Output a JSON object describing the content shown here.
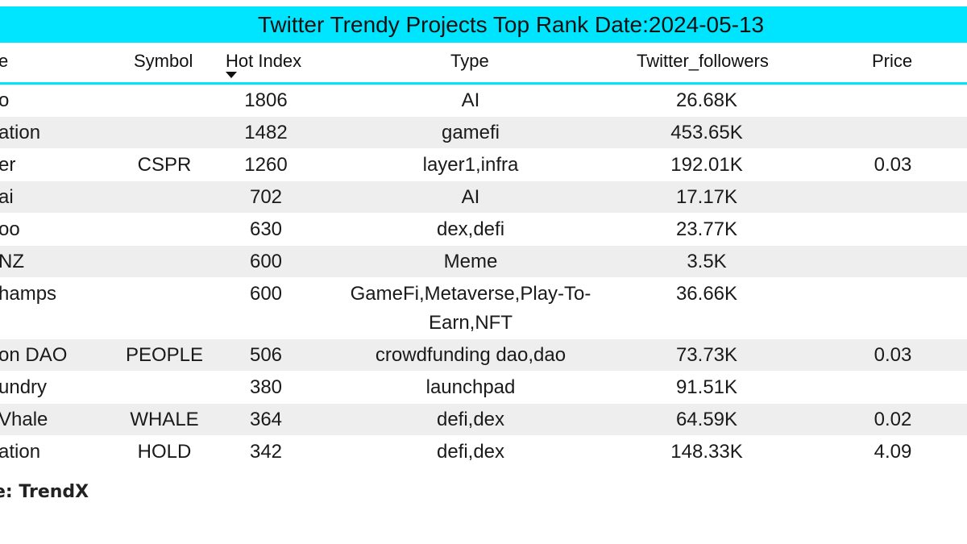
{
  "title": "Twitter Trendy Projects Top Rank Date:2024-05-13",
  "columns": {
    "name": "e",
    "symbol": "Symbol",
    "hot_index": "Hot Index",
    "type": "Type",
    "twitter_followers": "Twitter_followers",
    "price": "Price"
  },
  "sort": {
    "column": "hot_index",
    "direction": "descending",
    "icon": "sort-down-arrow-icon"
  },
  "rows": [
    {
      "name": "o",
      "symbol": "",
      "hot_index": "1806",
      "type": "AI",
      "twitter_followers": "26.68K",
      "price": ""
    },
    {
      "name": "ation",
      "symbol": "",
      "hot_index": "1482",
      "type": "gamefi",
      "twitter_followers": "453.65K",
      "price": ""
    },
    {
      "name": "er",
      "symbol": "CSPR",
      "hot_index": "1260",
      "type": "layer1,infra",
      "twitter_followers": "192.01K",
      "price": "0.03"
    },
    {
      "name": "ai",
      "symbol": "",
      "hot_index": "702",
      "type": "AI",
      "twitter_followers": "17.17K",
      "price": ""
    },
    {
      "name": "oo",
      "symbol": "",
      "hot_index": "630",
      "type": "dex,defi",
      "twitter_followers": "23.77K",
      "price": ""
    },
    {
      "name": "NZ",
      "symbol": "",
      "hot_index": "600",
      "type": "Meme",
      "twitter_followers": "3.5K",
      "price": ""
    },
    {
      "name": "hamps",
      "symbol": "",
      "hot_index": "600",
      "type": "GameFi,Metaverse,Play-To-Earn,NFT",
      "twitter_followers": "36.66K",
      "price": ""
    },
    {
      "name": "on DAO",
      "symbol": "PEOPLE",
      "hot_index": "506",
      "type": "crowdfunding dao,dao",
      "twitter_followers": "73.73K",
      "price": "0.03"
    },
    {
      "name": "undry",
      "symbol": "",
      "hot_index": "380",
      "type": "launchpad",
      "twitter_followers": "91.51K",
      "price": ""
    },
    {
      "name": "Vhale",
      "symbol": "WHALE",
      "hot_index": "364",
      "type": "defi,dex",
      "twitter_followers": "64.59K",
      "price": "0.02"
    },
    {
      "name": "ation",
      "symbol": "HOLD",
      "hot_index": "342",
      "type": "defi,dex",
      "twitter_followers": "148.33K",
      "price": "4.09"
    }
  ],
  "source": "e: TrendX",
  "colors": {
    "accent": "#00e5ff",
    "row_alt": "#eeeeee"
  }
}
